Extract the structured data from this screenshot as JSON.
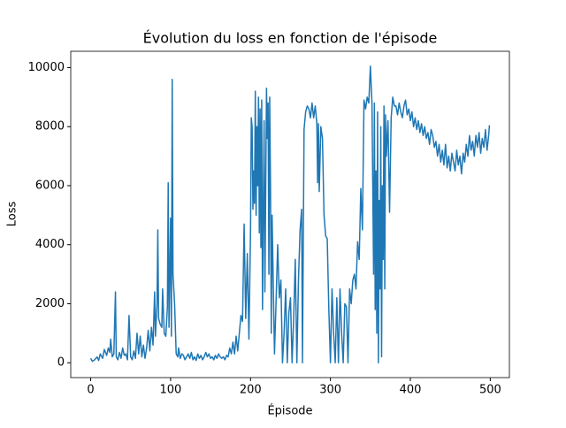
{
  "chart_data": {
    "type": "line",
    "title": "Évolution du loss en fonction de l'épisode",
    "xlabel": "Épisode",
    "ylabel": "Loss",
    "color": "#1f77b4",
    "xlim": [
      -24.95,
      523.95
    ],
    "ylim": [
      -503,
      10553
    ],
    "xticks": [
      0,
      100,
      200,
      300,
      400,
      500
    ],
    "yticks": [
      0,
      2000,
      4000,
      6000,
      8000,
      10000
    ],
    "x": [
      0,
      2,
      5,
      8,
      10,
      12,
      15,
      17,
      20,
      22,
      24,
      25,
      27,
      29,
      31,
      32,
      34,
      36,
      38,
      40,
      42,
      44,
      46,
      48,
      50,
      52,
      54,
      56,
      58,
      60,
      62,
      64,
      66,
      68,
      70,
      72,
      74,
      76,
      78,
      80,
      81,
      83,
      84,
      85,
      87,
      89,
      90,
      92,
      94,
      96,
      97,
      98,
      100,
      101,
      102,
      103,
      105,
      107,
      109,
      110,
      112,
      114,
      116,
      118,
      120,
      122,
      124,
      126,
      128,
      130,
      132,
      134,
      136,
      138,
      140,
      142,
      144,
      146,
      148,
      150,
      152,
      154,
      156,
      158,
      160,
      162,
      164,
      166,
      168,
      170,
      172,
      174,
      176,
      178,
      180,
      182,
      184,
      186,
      188,
      190,
      192,
      194,
      196,
      198,
      200,
      201,
      202,
      203,
      204,
      205,
      206,
      207,
      208,
      209,
      210,
      211,
      212,
      213,
      214,
      215,
      216,
      217,
      218,
      220,
      221,
      222,
      223,
      224,
      225,
      226,
      227,
      228,
      230,
      232,
      234,
      236,
      238,
      240,
      242,
      244,
      246,
      248,
      250,
      252,
      254,
      256,
      258,
      260,
      262,
      264,
      265,
      267,
      269,
      271,
      273,
      275,
      277,
      279,
      281,
      283,
      284,
      285,
      286,
      288,
      290,
      292,
      294,
      296,
      298,
      300,
      302,
      304,
      306,
      308,
      310,
      312,
      314,
      316,
      318,
      320,
      322,
      324,
      326,
      328,
      330,
      332,
      334,
      336,
      338,
      340,
      342,
      344,
      346,
      348,
      350,
      352,
      354,
      355,
      356,
      357,
      358,
      359,
      360,
      361,
      362,
      363,
      364,
      365,
      366,
      367,
      368,
      369,
      370,
      372,
      374,
      376,
      378,
      380,
      382,
      384,
      386,
      388,
      390,
      392,
      394,
      396,
      398,
      400,
      402,
      404,
      406,
      408,
      410,
      412,
      414,
      416,
      418,
      420,
      422,
      424,
      426,
      428,
      430,
      432,
      434,
      436,
      438,
      440,
      442,
      444,
      446,
      448,
      450,
      452,
      454,
      456,
      458,
      460,
      462,
      464,
      466,
      468,
      470,
      472,
      474,
      476,
      478,
      480,
      482,
      484,
      486,
      488,
      490,
      492,
      494,
      496,
      498,
      499
    ],
    "values": [
      150,
      50,
      100,
      200,
      80,
      300,
      150,
      450,
      250,
      500,
      350,
      800,
      200,
      300,
      2400,
      200,
      100,
      350,
      150,
      500,
      250,
      300,
      100,
      1600,
      200,
      100,
      400,
      150,
      1000,
      300,
      900,
      200,
      600,
      150,
      500,
      1100,
      400,
      1200,
      600,
      2400,
      900,
      2000,
      4500,
      1500,
      1300,
      1200,
      2500,
      1000,
      900,
      1900,
      6100,
      1200,
      4900,
      900,
      9600,
      3000,
      2000,
      300,
      200,
      500,
      150,
      300,
      250,
      100,
      200,
      300,
      150,
      350,
      100,
      200,
      80,
      300,
      150,
      250,
      100,
      200,
      350,
      200,
      300,
      150,
      200,
      100,
      250,
      150,
      300,
      200,
      150,
      200,
      100,
      250,
      200,
      500,
      300,
      700,
      300,
      900,
      400,
      1000,
      1600,
      1400,
      4700,
      1500,
      3700,
      800,
      4400,
      8300,
      8000,
      5200,
      6500,
      5400,
      9200,
      5000,
      8000,
      6000,
      9000,
      4400,
      8600,
      3900,
      8900,
      1800,
      5000,
      8200,
      2400,
      9300,
      7600,
      8800,
      3000,
      9000,
      6000,
      1000,
      5000,
      3400,
      300,
      2100,
      4000,
      2200,
      2800,
      0,
      1000,
      2500,
      0,
      1700,
      2200,
      0,
      1500,
      3500,
      0,
      2800,
      4500,
      5200,
      0,
      7900,
      8500,
      8700,
      8600,
      8300,
      8800,
      8300,
      8700,
      8100,
      6100,
      8100,
      5800,
      8000,
      7600,
      5000,
      4300,
      4200,
      1800,
      0,
      2500,
      1000,
      0,
      2200,
      0,
      2500,
      1000,
      0,
      2000,
      1900,
      0,
      2500,
      2000,
      2800,
      3000,
      2500,
      4100,
      3500,
      5900,
      4500,
      8900,
      8600,
      9000,
      8800,
      10050,
      8800,
      3000,
      8800,
      1800,
      6500,
      1000,
      8500,
      0,
      5500,
      2500,
      8000,
      200,
      6000,
      3500,
      8700,
      2500,
      8400,
      7000,
      8200,
      5100,
      8300,
      9000,
      8700,
      8700,
      8400,
      8800,
      8500,
      8300,
      8700,
      8900,
      8400,
      8600,
      8200,
      8500,
      8000,
      8300,
      7900,
      8200,
      7800,
      8100,
      7700,
      8000,
      7600,
      7800,
      7400,
      7900,
      7700,
      7300,
      7500,
      7000,
      7400,
      6800,
      7200,
      6700,
      7400,
      6600,
      7000,
      6500,
      7100,
      6800,
      6500,
      7200,
      6700,
      7000,
      6400,
      7100,
      6800,
      7400,
      7000,
      7700,
      7200,
      7500,
      7000,
      7700,
      7300,
      7800,
      7100,
      7600,
      7300,
      7900,
      7200,
      7700,
      8050
    ]
  }
}
